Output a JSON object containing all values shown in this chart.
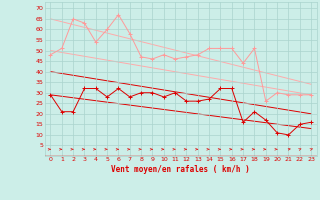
{
  "x": [
    0,
    1,
    2,
    3,
    4,
    5,
    6,
    7,
    8,
    9,
    10,
    11,
    12,
    13,
    14,
    15,
    16,
    17,
    18,
    19,
    20,
    21,
    22,
    23
  ],
  "wind_avg": [
    29,
    21,
    21,
    32,
    32,
    28,
    32,
    28,
    30,
    30,
    28,
    30,
    26,
    26,
    27,
    32,
    32,
    16,
    21,
    17,
    11,
    10,
    15,
    16
  ],
  "wind_gust": [
    48,
    51,
    65,
    63,
    54,
    60,
    67,
    58,
    47,
    46,
    48,
    46,
    47,
    48,
    51,
    51,
    51,
    44,
    51,
    26,
    30,
    29,
    29,
    29
  ],
  "trend_gust_upper": [
    65,
    34
  ],
  "trend_gust_lower": [
    50,
    29
  ],
  "trend_avg_upper": [
    40,
    20
  ],
  "trend_avg_lower": [
    29,
    13
  ],
  "wind_dir": [
    1,
    1,
    1,
    1,
    1,
    1,
    1,
    1,
    1,
    1,
    1,
    1,
    1,
    1,
    1,
    1,
    1,
    1,
    1,
    1,
    1,
    2,
    3,
    3
  ],
  "bg_color": "#cceee8",
  "grid_color": "#aad4ce",
  "line_avg_color": "#dd0000",
  "line_gust_color": "#ff9999",
  "trend_dark": "#dd0000",
  "trend_light": "#ffaaaa",
  "arrow_color": "#dd2222",
  "xlabel": "Vent moyen/en rafales ( km/h )",
  "ylim": [
    0,
    73
  ],
  "yticks": [
    5,
    10,
    15,
    20,
    25,
    30,
    35,
    40,
    45,
    50,
    55,
    60,
    65,
    70
  ],
  "xlim": [
    0,
    23
  ]
}
